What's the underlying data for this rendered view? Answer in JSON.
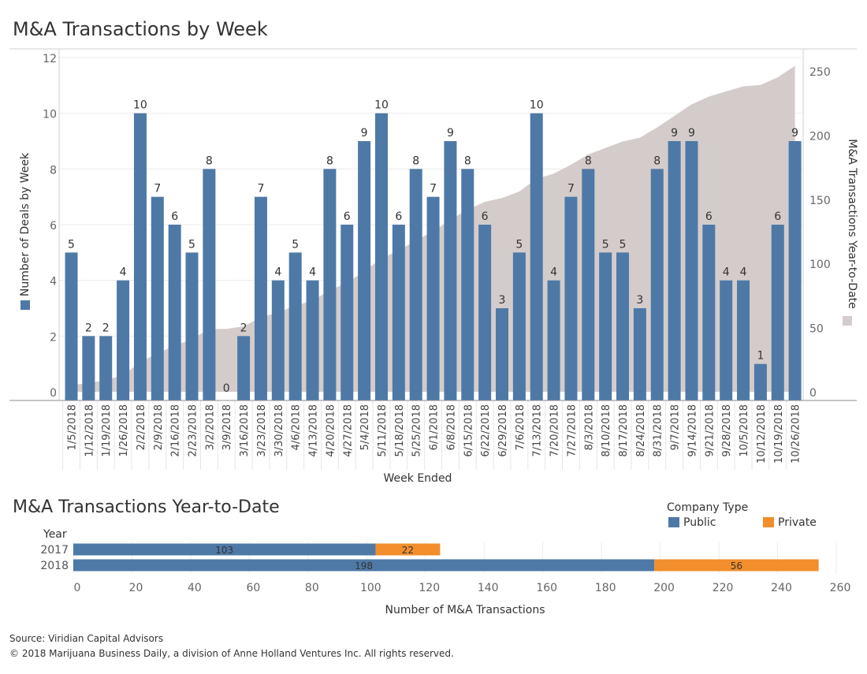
{
  "chart_data": [
    {
      "type": "bar",
      "title": "M&A Transactions by Week",
      "xlabel": "Week Ended",
      "ylabel": "Number of Deals by Week",
      "ylabel_right": "M&A Transactions Year-to-Date",
      "ylim": [
        0,
        12
      ],
      "yticks": [
        0,
        2,
        4,
        6,
        8,
        10,
        12
      ],
      "ylim_right": [
        0,
        260
      ],
      "yticks_right": [
        0,
        50,
        100,
        150,
        200,
        250
      ],
      "categories": [
        "1/5/2018",
        "1/12/2018",
        "1/19/2018",
        "1/26/2018",
        "2/2/2018",
        "2/9/2018",
        "2/16/2018",
        "2/23/2018",
        "3/2/2018",
        "3/9/2018",
        "3/16/2018",
        "3/23/2018",
        "3/30/2018",
        "4/6/2018",
        "4/13/2018",
        "4/20/2018",
        "4/27/2018",
        "5/4/2018",
        "5/11/2018",
        "5/18/2018",
        "5/25/2018",
        "6/1/2018",
        "6/8/2018",
        "6/15/2018",
        "6/22/2018",
        "6/29/2018",
        "7/6/2018",
        "7/13/2018",
        "7/20/2018",
        "7/27/2018",
        "8/3/2018",
        "8/10/2018",
        "8/17/2018",
        "8/24/2018",
        "8/31/2018",
        "9/7/2018",
        "9/14/2018",
        "9/21/2018",
        "9/28/2018",
        "10/5/2018",
        "10/12/2018",
        "10/19/2018",
        "10/26/2018"
      ],
      "series": [
        {
          "type": "bar",
          "color": "#4e79a7",
          "values": [
            5,
            2,
            2,
            4,
            10,
            7,
            6,
            5,
            8,
            0,
            2,
            7,
            4,
            5,
            4,
            8,
            6,
            9,
            10,
            6,
            8,
            7,
            9,
            8,
            6,
            3,
            5,
            10,
            4,
            7,
            8,
            5,
            5,
            3,
            8,
            9,
            9,
            6,
            4,
            4,
            1,
            6,
            9
          ]
        },
        {
          "type": "area",
          "color": "#d4cccb",
          "values": [
            5,
            7,
            9,
            13,
            23,
            30,
            36,
            41,
            49,
            49,
            51,
            58,
            62,
            67,
            71,
            79,
            85,
            94,
            104,
            110,
            118,
            125,
            134,
            142,
            148,
            151,
            156,
            166,
            170,
            177,
            185,
            190,
            195,
            198,
            206,
            215,
            224,
            230,
            234,
            238,
            239,
            245,
            254
          ]
        }
      ],
      "grid": "horizontal"
    },
    {
      "type": "bar",
      "orientation": "horizontal",
      "stacked": true,
      "title": "M&A Transactions Year-to-Date",
      "ylabel": "Year",
      "xlabel": "Number of M&A Transactions",
      "categories": [
        "2017",
        "2018"
      ],
      "series": [
        {
          "name": "Public",
          "color": "#4e79a7",
          "values": [
            103,
            198
          ]
        },
        {
          "name": "Private",
          "color": "#f28e2b",
          "values": [
            22,
            56
          ]
        }
      ],
      "xlim": [
        0,
        260
      ],
      "xticks": [
        0,
        20,
        40,
        60,
        80,
        100,
        120,
        140,
        160,
        180,
        200,
        220,
        240,
        260
      ],
      "legend_title": "Company Type",
      "legend": "top-right"
    }
  ],
  "footer": {
    "source": "Source: Viridian Capital Advisors",
    "copyright": "© 2018 Marijuana Business Daily, a division of Anne Holland Ventures Inc. All rights reserved."
  }
}
